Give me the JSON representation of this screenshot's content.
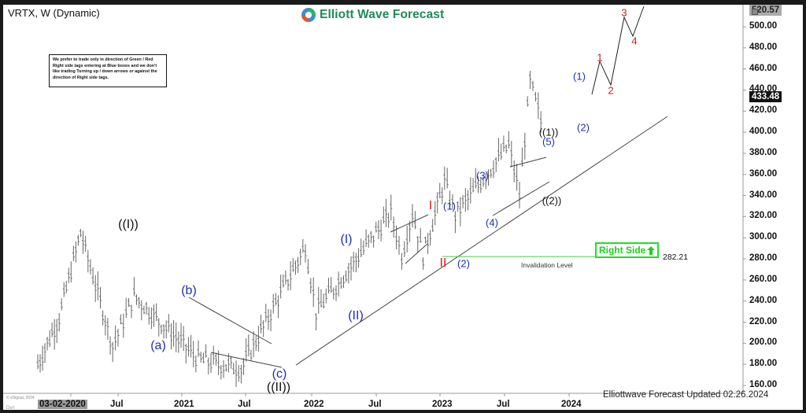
{
  "window": {
    "title": "VRTX, W (Dynamic)",
    "brand": "Elliott Wave Forecast",
    "footer": "Elliottwave Forecast Updated 02.26.2024",
    "copyright": "© eSignal, 2024",
    "dyn_label": "Dyn"
  },
  "note": {
    "text": "We prefer to trade only in direction of Green / Red Right side tags entering at Blue boxes and we don't like trading Turning up / down arrows or against the direction of Right side tags."
  },
  "right_side_tag": {
    "label": "Right Side",
    "icon": "arrow-up-icon",
    "color": "#22cc22"
  },
  "invalidation": {
    "label": "Invalidation Level",
    "price": "282.21",
    "color": "#44cc44"
  },
  "price_tags": {
    "high": "520.57",
    "last": "433.48"
  },
  "colors": {
    "brand": "#1e8a5b",
    "wave_blue": "#1f2fb0",
    "wave_red": "#d41a1a",
    "wave_black": "#111111",
    "bars": "#555555"
  },
  "chart_data": {
    "type": "bar",
    "subtype": "ohlc-weekly",
    "title": "VRTX, W (Dynamic)",
    "xlabel": "",
    "ylabel": "",
    "ylim": [
      155,
      525
    ],
    "grid": false,
    "y_ticks": [
      "500.00",
      "480.00",
      "460.00",
      "440.00",
      "420.00",
      "400.00",
      "380.00",
      "360.00",
      "340.00",
      "320.00",
      "300.00",
      "280.00",
      "260.00",
      "240.00",
      "220.00",
      "200.00",
      "180.00",
      "160.00"
    ],
    "x_ticks": [
      "03-02-2020",
      "Jul",
      "2021",
      "Jul",
      "2022",
      "Jul",
      "2023",
      "Jul",
      "2024"
    ],
    "last_price": 433.48,
    "high_price": 520.57,
    "invalidation_level": 282.21,
    "wave_labels": [
      {
        "label": "((I))",
        "color": "black",
        "approx_date": "Jul 2020",
        "price": 305
      },
      {
        "label": "(a)",
        "color": "blue",
        "approx_date": "Oct 2020",
        "price": 198
      },
      {
        "label": "(b)",
        "color": "blue",
        "approx_date": "Dec 2020",
        "price": 245
      },
      {
        "label": "(c)",
        "color": "blue",
        "approx_date": "Oct 2021",
        "price": 176
      },
      {
        "label": "((II))",
        "color": "black",
        "approx_date": "Oct 2021",
        "price": 176
      },
      {
        "label": "(I)",
        "color": "blue",
        "approx_date": "Apr 2022",
        "price": 292
      },
      {
        "label": "(II)",
        "color": "blue",
        "approx_date": "May 2022",
        "price": 230
      },
      {
        "label": "I",
        "color": "red",
        "approx_date": "Dec 2022",
        "price": 324
      },
      {
        "label": "II",
        "color": "red",
        "approx_date": "Jan 2023",
        "price": 283
      },
      {
        "label": "(1)",
        "color": "blue",
        "approx_date": "Feb 2023",
        "price": 324
      },
      {
        "label": "(2)",
        "color": "blue",
        "approx_date": "Mar 2023",
        "price": 283
      },
      {
        "label": "(3)",
        "color": "blue",
        "approx_date": "May 2023",
        "price": 354
      },
      {
        "label": "(4)",
        "color": "blue",
        "approx_date": "Jun 2023",
        "price": 322
      },
      {
        "label": "(5)",
        "color": "blue",
        "approx_date": "Nov 2023",
        "price": 388
      },
      {
        "label": "((1))",
        "color": "black",
        "approx_date": "Nov 2023",
        "price": 388
      },
      {
        "label": "((2))",
        "color": "black",
        "approx_date": "Dec 2023",
        "price": 341
      },
      {
        "label": "(1)",
        "color": "blue",
        "approx_date": "Jan 2024",
        "price": 448
      },
      {
        "label": "(2)",
        "color": "blue",
        "approx_date": "Feb 2024",
        "price": 411
      },
      {
        "label": "1",
        "color": "red",
        "approx_date": "projection",
        "price": 464
      },
      {
        "label": "2",
        "color": "red",
        "approx_date": "projection",
        "price": 445
      },
      {
        "label": "3",
        "color": "red",
        "approx_date": "projection",
        "price": 508
      },
      {
        "label": "4",
        "color": "red",
        "approx_date": "projection",
        "price": 495
      }
    ],
    "approx_path": [
      {
        "date": "Mar 2020",
        "price": 180
      },
      {
        "date": "May 2020",
        "price": 225
      },
      {
        "date": "Jul 2020",
        "price": 305
      },
      {
        "date": "Oct 2020",
        "price": 198
      },
      {
        "date": "Dec 2020",
        "price": 245
      },
      {
        "date": "Jun 2021",
        "price": 185
      },
      {
        "date": "Oct 2021",
        "price": 176
      },
      {
        "date": "Apr 2022",
        "price": 292
      },
      {
        "date": "May 2022",
        "price": 230
      },
      {
        "date": "Dec 2022",
        "price": 324
      },
      {
        "date": "Jan 2023",
        "price": 283
      },
      {
        "date": "Feb 2023",
        "price": 324
      },
      {
        "date": "Mar 2023",
        "price": 283
      },
      {
        "date": "May 2023",
        "price": 354
      },
      {
        "date": "Jun 2023",
        "price": 322
      },
      {
        "date": "Nov 2023",
        "price": 388
      },
      {
        "date": "Dec 2023",
        "price": 341
      },
      {
        "date": "Jan 2024",
        "price": 448
      },
      {
        "date": "Feb 2024",
        "price": 411
      },
      {
        "date": "Feb 2024 (last)",
        "price": 433.48
      }
    ],
    "annotations": [
      "Right Side ↑ tag (green)",
      "Invalidation Level 282.21",
      "Rising trendline from Oct 2021 low",
      "Projected path 1-2-3-4 to ~520"
    ]
  }
}
